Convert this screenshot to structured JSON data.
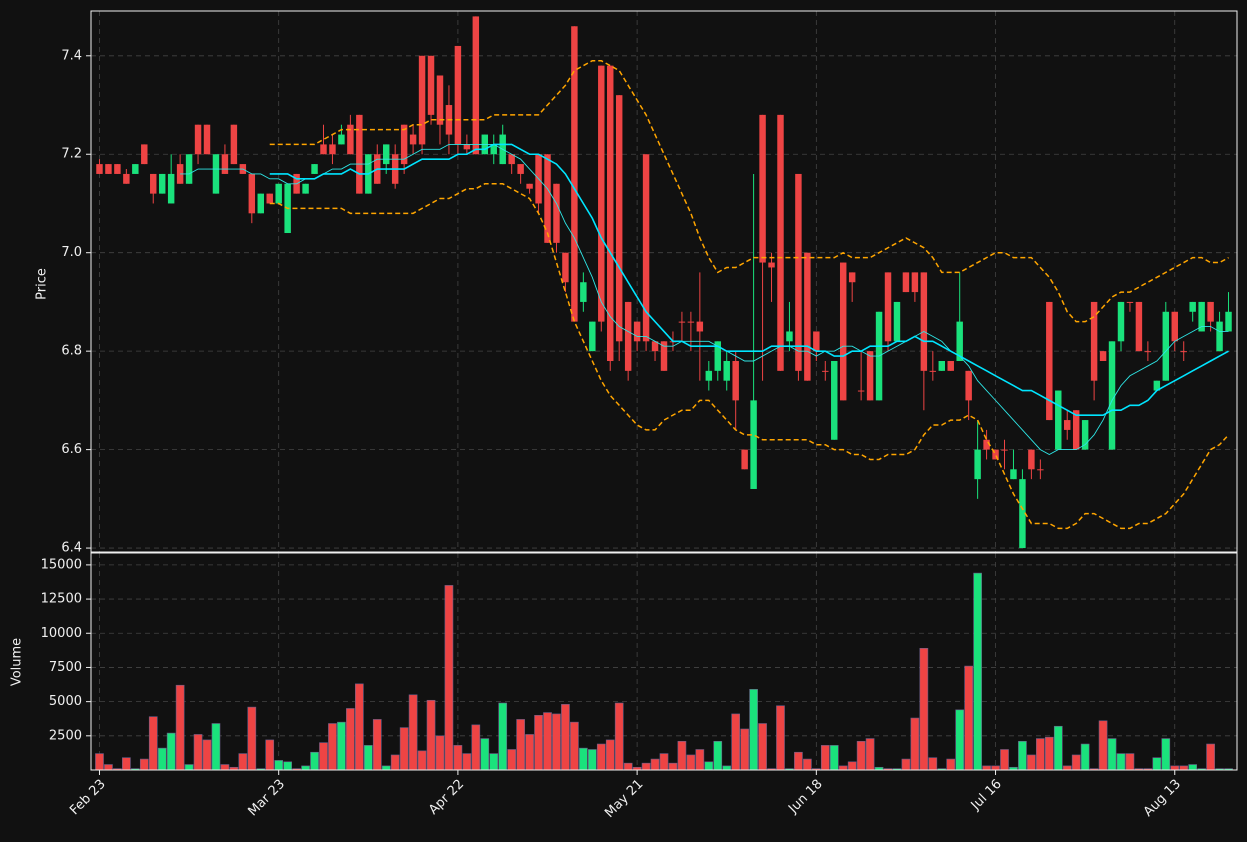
{
  "chart_data": {
    "type": "candlestick",
    "categories": [
      "Feb 23",
      null,
      null,
      null,
      null,
      null,
      null,
      null,
      null,
      null,
      null,
      null,
      null,
      null,
      null,
      null,
      null,
      null,
      null,
      null,
      "Mar 23",
      null,
      null,
      null,
      null,
      null,
      null,
      null,
      null,
      null,
      null,
      null,
      null,
      null,
      null,
      null,
      null,
      null,
      null,
      null,
      "Apr 22",
      null,
      null,
      null,
      null,
      null,
      null,
      null,
      null,
      null,
      null,
      null,
      null,
      null,
      null,
      null,
      null,
      null,
      null,
      null,
      "May 21",
      null,
      null,
      null,
      null,
      null,
      null,
      null,
      null,
      null,
      null,
      null,
      null,
      null,
      null,
      null,
      null,
      null,
      null,
      null,
      "Jun 18",
      null,
      null,
      null,
      null,
      null,
      null,
      null,
      null,
      null,
      null,
      null,
      null,
      null,
      null,
      null,
      null,
      null,
      null,
      null,
      "Jul 16",
      null,
      null,
      null,
      null,
      null,
      null,
      null,
      null,
      null,
      null,
      null,
      null,
      null,
      null,
      null,
      null,
      null,
      null,
      null,
      "Aug 13",
      null,
      null,
      null,
      null,
      null,
      null
    ],
    "open": [
      7.18,
      7.18,
      7.18,
      7.16,
      7.16,
      7.22,
      7.16,
      7.12,
      7.1,
      7.18,
      7.14,
      7.26,
      7.26,
      7.12,
      7.2,
      7.26,
      7.18,
      7.16,
      7.08,
      7.12,
      7.1,
      7.04,
      7.16,
      7.12,
      7.16,
      7.22,
      7.22,
      7.22,
      7.26,
      7.28,
      7.12,
      7.2,
      7.18,
      7.2,
      7.26,
      7.24,
      7.4,
      7.4,
      7.36,
      7.3,
      7.42,
      7.22,
      7.48,
      7.2,
      7.2,
      7.18,
      7.2,
      7.18,
      7.14,
      7.2,
      7.2,
      7.14,
      7.0,
      7.46,
      6.9,
      6.8,
      7.38,
      7.38,
      7.32,
      6.9,
      6.86,
      7.2,
      6.82,
      6.82,
      6.82,
      6.86,
      6.86,
      6.86,
      6.74,
      6.76,
      6.74,
      6.78,
      6.6,
      6.52,
      7.28,
      6.98,
      7.28,
      6.82,
      7.16,
      7.0,
      6.84,
      6.76,
      6.62,
      6.98,
      6.96,
      6.72,
      6.8,
      6.7,
      6.96,
      6.82,
      6.96,
      6.96,
      6.96,
      6.76,
      6.76,
      6.78,
      6.78,
      6.76,
      6.54,
      6.62,
      6.6,
      6.6,
      6.54,
      6.4,
      6.6,
      6.56,
      6.9,
      6.6,
      6.66,
      6.68,
      6.6,
      6.9,
      6.8,
      6.6,
      6.82,
      6.9,
      6.9,
      6.8,
      6.72,
      6.74,
      6.88,
      6.8,
      6.88,
      6.84,
      6.9,
      6.8,
      6.84
    ],
    "high": [
      7.19,
      7.18,
      7.18,
      7.17,
      7.18,
      7.22,
      7.16,
      7.16,
      7.2,
      7.2,
      7.2,
      7.26,
      7.26,
      7.2,
      7.22,
      7.26,
      7.18,
      7.16,
      7.12,
      7.12,
      7.14,
      7.14,
      7.16,
      7.14,
      7.18,
      7.26,
      7.24,
      7.26,
      7.28,
      7.28,
      7.2,
      7.22,
      7.22,
      7.22,
      7.26,
      7.26,
      7.4,
      7.4,
      7.36,
      7.34,
      7.42,
      7.24,
      7.48,
      7.24,
      7.24,
      7.26,
      7.2,
      7.18,
      7.14,
      7.2,
      7.2,
      7.14,
      7.0,
      7.46,
      6.96,
      6.86,
      7.38,
      7.38,
      7.32,
      6.9,
      6.86,
      7.2,
      6.82,
      6.82,
      6.84,
      6.88,
      6.88,
      6.96,
      6.78,
      6.82,
      6.8,
      6.8,
      6.6,
      7.16,
      7.28,
      7.0,
      7.28,
      6.9,
      7.16,
      7.0,
      6.84,
      6.78,
      6.78,
      6.98,
      6.96,
      6.8,
      6.8,
      6.88,
      6.96,
      6.9,
      6.96,
      6.96,
      6.96,
      6.8,
      6.78,
      6.78,
      6.96,
      6.76,
      6.66,
      6.64,
      6.6,
      6.62,
      6.6,
      6.56,
      6.6,
      6.58,
      6.9,
      6.72,
      6.68,
      6.68,
      6.66,
      6.9,
      6.8,
      6.82,
      6.9,
      6.9,
      6.9,
      6.82,
      6.74,
      6.9,
      6.88,
      6.82,
      6.9,
      6.9,
      6.9,
      6.88,
      6.92
    ],
    "low": [
      7.16,
      7.16,
      7.16,
      7.14,
      7.16,
      7.18,
      7.1,
      7.12,
      7.1,
      7.14,
      7.14,
      7.18,
      7.2,
      7.12,
      7.16,
      7.18,
      7.16,
      7.06,
      7.08,
      7.1,
      7.1,
      7.04,
      7.12,
      7.12,
      7.16,
      7.2,
      7.18,
      7.22,
      7.2,
      7.12,
      7.12,
      7.14,
      7.16,
      7.13,
      7.16,
      7.2,
      7.2,
      7.26,
      7.22,
      7.2,
      7.2,
      7.2,
      7.2,
      7.2,
      7.18,
      7.18,
      7.16,
      7.14,
      7.12,
      7.08,
      7.02,
      7.0,
      6.92,
      6.86,
      6.88,
      6.8,
      6.84,
      6.76,
      6.78,
      6.74,
      6.8,
      6.8,
      6.78,
      6.76,
      6.8,
      6.82,
      6.8,
      6.74,
      6.72,
      6.74,
      6.72,
      6.64,
      6.56,
      6.52,
      6.74,
      6.9,
      6.76,
      6.8,
      6.74,
      6.74,
      6.78,
      6.74,
      6.62,
      6.7,
      6.9,
      6.7,
      6.7,
      6.7,
      6.8,
      6.82,
      6.92,
      6.9,
      6.68,
      6.74,
      6.76,
      6.76,
      6.78,
      6.66,
      6.5,
      6.58,
      6.58,
      6.56,
      6.54,
      6.4,
      6.54,
      6.54,
      6.66,
      6.6,
      6.62,
      6.6,
      6.6,
      6.7,
      6.78,
      6.6,
      6.8,
      6.88,
      6.8,
      6.78,
      6.72,
      6.74,
      6.8,
      6.78,
      6.86,
      6.84,
      6.84,
      6.8,
      6.84
    ],
    "close": [
      7.16,
      7.16,
      7.16,
      7.14,
      7.18,
      7.18,
      7.12,
      7.16,
      7.16,
      7.14,
      7.2,
      7.2,
      7.2,
      7.2,
      7.16,
      7.18,
      7.16,
      7.08,
      7.12,
      7.1,
      7.14,
      7.14,
      7.12,
      7.14,
      7.18,
      7.2,
      7.2,
      7.24,
      7.2,
      7.12,
      7.2,
      7.14,
      7.22,
      7.14,
      7.18,
      7.22,
      7.22,
      7.28,
      7.26,
      7.24,
      7.22,
      7.21,
      7.2,
      7.24,
      7.22,
      7.24,
      7.18,
      7.16,
      7.13,
      7.1,
      7.02,
      7.02,
      6.94,
      6.86,
      6.94,
      6.86,
      6.86,
      6.78,
      6.82,
      6.76,
      6.82,
      6.82,
      6.8,
      6.76,
      6.82,
      6.86,
      6.86,
      6.84,
      6.76,
      6.82,
      6.78,
      6.7,
      6.56,
      6.7,
      6.98,
      6.97,
      6.76,
      6.84,
      6.76,
      6.74,
      6.8,
      6.76,
      6.78,
      6.7,
      6.94,
      6.72,
      6.7,
      6.88,
      6.82,
      6.9,
      6.92,
      6.92,
      6.76,
      6.76,
      6.78,
      6.76,
      6.86,
      6.7,
      6.6,
      6.6,
      6.58,
      6.6,
      6.56,
      6.54,
      6.56,
      6.56,
      6.66,
      6.72,
      6.64,
      6.6,
      6.66,
      6.74,
      6.78,
      6.82,
      6.9,
      6.9,
      6.8,
      6.8,
      6.74,
      6.88,
      6.82,
      6.8,
      6.9,
      6.9,
      6.86,
      6.86,
      6.88
    ],
    "up_color": "#1ae27c",
    "down_color": "#ee4444",
    "ylabel": "Price",
    "ylim": [
      6.392,
      7.491
    ],
    "yticks": [
      6.4,
      6.6,
      6.8,
      {
        "value": 7.0,
        "label": "7.0"
      },
      7.2,
      7.4
    ],
    "grid": true,
    "lines": [
      {
        "color": "#2ee6e6",
        "width": 0.9,
        "dashed": false,
        "values": [
          null,
          null,
          null,
          null,
          null,
          null,
          null,
          null,
          null,
          7.16,
          7.16,
          7.17,
          7.17,
          7.17,
          7.17,
          7.17,
          7.17,
          7.16,
          7.16,
          7.15,
          7.15,
          7.14,
          7.14,
          7.15,
          7.15,
          7.16,
          7.17,
          7.17,
          7.18,
          7.18,
          7.18,
          7.19,
          7.19,
          7.19,
          7.19,
          7.2,
          7.21,
          7.21,
          7.21,
          7.22,
          7.22,
          7.22,
          7.22,
          7.22,
          7.22,
          7.21,
          7.2,
          7.19,
          7.17,
          7.15,
          7.13,
          7.1,
          7.06,
          7.03,
          6.99,
          6.95,
          6.9,
          6.87,
          6.85,
          6.84,
          6.83,
          6.83,
          6.82,
          6.81,
          6.81,
          6.82,
          6.82,
          6.82,
          6.82,
          6.81,
          6.8,
          6.79,
          6.78,
          6.78,
          6.79,
          6.8,
          6.81,
          6.81,
          6.8,
          6.8,
          6.79,
          6.8,
          6.8,
          6.81,
          6.81,
          6.8,
          6.79,
          6.79,
          6.8,
          6.81,
          6.82,
          6.83,
          6.84,
          6.83,
          6.82,
          6.8,
          6.79,
          6.77,
          6.74,
          6.72,
          6.7,
          6.68,
          6.66,
          6.64,
          6.62,
          6.6,
          6.59,
          6.6,
          6.6,
          6.6,
          6.61,
          6.63,
          6.66,
          6.7,
          6.73,
          6.75,
          6.76,
          6.77,
          6.78,
          6.8,
          6.82,
          6.83,
          6.84,
          6.85,
          6.85,
          6.84,
          6.84
        ]
      },
      {
        "color": "#00e5ff",
        "width": 1.6,
        "dashed": false,
        "values": [
          null,
          null,
          null,
          null,
          null,
          null,
          null,
          null,
          null,
          null,
          null,
          null,
          null,
          null,
          null,
          null,
          null,
          null,
          null,
          7.16,
          7.16,
          7.16,
          7.15,
          7.15,
          7.15,
          7.16,
          7.16,
          7.16,
          7.17,
          7.16,
          7.16,
          7.17,
          7.17,
          7.17,
          7.17,
          7.18,
          7.19,
          7.19,
          7.19,
          7.19,
          7.2,
          7.2,
          7.21,
          7.21,
          7.22,
          7.22,
          7.22,
          7.21,
          7.2,
          7.2,
          7.19,
          7.18,
          7.16,
          7.13,
          7.1,
          7.07,
          7.03,
          7.0,
          6.97,
          6.94,
          6.91,
          6.88,
          6.86,
          6.84,
          6.82,
          6.82,
          6.81,
          6.81,
          6.81,
          6.81,
          6.8,
          6.8,
          6.8,
          6.8,
          6.8,
          6.81,
          6.81,
          6.81,
          6.81,
          6.81,
          6.8,
          6.8,
          6.79,
          6.79,
          6.8,
          6.8,
          6.81,
          6.81,
          6.81,
          6.82,
          6.82,
          6.83,
          6.82,
          6.82,
          6.81,
          6.8,
          6.79,
          6.78,
          6.77,
          6.76,
          6.75,
          6.74,
          6.73,
          6.72,
          6.72,
          6.71,
          6.7,
          6.69,
          6.68,
          6.67,
          6.67,
          6.67,
          6.67,
          6.68,
          6.68,
          6.69,
          6.69,
          6.7,
          6.72,
          6.73,
          6.74,
          6.75,
          6.76,
          6.77,
          6.78,
          6.79,
          6.8
        ]
      },
      {
        "color": "#ffa500",
        "width": 1.5,
        "dashed": true,
        "values": [
          null,
          null,
          null,
          null,
          null,
          null,
          null,
          null,
          null,
          null,
          null,
          null,
          null,
          null,
          null,
          null,
          null,
          null,
          null,
          7.22,
          7.22,
          7.22,
          7.22,
          7.22,
          7.22,
          7.23,
          7.24,
          7.25,
          7.25,
          7.25,
          7.25,
          7.25,
          7.25,
          7.25,
          7.25,
          7.26,
          7.26,
          7.27,
          7.27,
          7.27,
          7.27,
          7.27,
          7.27,
          7.27,
          7.28,
          7.28,
          7.28,
          7.28,
          7.28,
          7.28,
          7.3,
          7.32,
          7.34,
          7.37,
          7.38,
          7.39,
          7.39,
          7.38,
          7.37,
          7.34,
          7.31,
          7.28,
          7.24,
          7.2,
          7.16,
          7.12,
          7.08,
          7.03,
          6.99,
          6.96,
          6.97,
          6.97,
          6.98,
          6.99,
          6.99,
          6.99,
          6.99,
          6.99,
          6.99,
          6.99,
          6.99,
          6.99,
          6.99,
          7.0,
          6.99,
          6.99,
          6.99,
          7.0,
          7.01,
          7.02,
          7.03,
          7.02,
          7.01,
          6.99,
          6.96,
          6.96,
          6.96,
          6.97,
          6.98,
          6.99,
          7.0,
          7.0,
          6.99,
          6.99,
          6.99,
          6.97,
          6.95,
          6.92,
          6.88,
          6.86,
          6.86,
          6.87,
          6.89,
          6.91,
          6.92,
          6.92,
          6.93,
          6.94,
          6.95,
          6.96,
          6.97,
          6.98,
          6.99,
          6.99,
          6.98,
          6.98,
          6.99
        ]
      },
      {
        "color": "#ffa500",
        "width": 1.5,
        "dashed": true,
        "values": [
          null,
          null,
          null,
          null,
          null,
          null,
          null,
          null,
          null,
          null,
          null,
          null,
          null,
          null,
          null,
          null,
          null,
          null,
          null,
          7.1,
          7.1,
          7.09,
          7.09,
          7.09,
          7.09,
          7.09,
          7.09,
          7.09,
          7.08,
          7.08,
          7.08,
          7.08,
          7.08,
          7.08,
          7.08,
          7.08,
          7.09,
          7.1,
          7.11,
          7.11,
          7.12,
          7.13,
          7.13,
          7.14,
          7.14,
          7.14,
          7.13,
          7.12,
          7.11,
          7.08,
          7.04,
          6.98,
          6.92,
          6.86,
          6.82,
          6.78,
          6.74,
          6.71,
          6.69,
          6.67,
          6.65,
          6.64,
          6.64,
          6.66,
          6.67,
          6.68,
          6.68,
          6.7,
          6.7,
          6.68,
          6.66,
          6.64,
          6.63,
          6.63,
          6.62,
          6.62,
          6.62,
          6.62,
          6.62,
          6.62,
          6.61,
          6.61,
          6.6,
          6.6,
          6.59,
          6.59,
          6.58,
          6.58,
          6.59,
          6.59,
          6.59,
          6.6,
          6.63,
          6.65,
          6.65,
          6.66,
          6.66,
          6.67,
          6.66,
          6.62,
          6.59,
          6.55,
          6.51,
          6.48,
          6.45,
          6.45,
          6.45,
          6.44,
          6.44,
          6.45,
          6.47,
          6.47,
          6.46,
          6.45,
          6.44,
          6.44,
          6.45,
          6.45,
          6.46,
          6.47,
          6.49,
          6.51,
          6.54,
          6.57,
          6.6,
          6.61,
          6.63
        ]
      }
    ],
    "volume": {
      "ylabel": "Volume",
      "ylim": [
        0,
        15870
      ],
      "yticks": [
        2500,
        5000,
        7500,
        10000,
        12500,
        15000
      ],
      "values": [
        1200,
        400,
        100,
        900,
        100,
        800,
        3900,
        1600,
        2700,
        6200,
        400,
        2600,
        2200,
        3400,
        400,
        200,
        1200,
        4600,
        100,
        2200,
        700,
        600,
        100,
        300,
        1300,
        2000,
        3400,
        3500,
        4500,
        6300,
        1800,
        3700,
        300,
        1100,
        3100,
        5500,
        1400,
        5100,
        2500,
        13500,
        1800,
        1200,
        3300,
        2300,
        1200,
        4900,
        1500,
        3700,
        2600,
        4000,
        4200,
        4100,
        4800,
        3500,
        1600,
        1500,
        1900,
        2200,
        4900,
        500,
        200,
        500,
        800,
        1200,
        500,
        2100,
        1100,
        1500,
        600,
        2100,
        300,
        4100,
        3000,
        5900,
        3400,
        100,
        4700,
        100,
        1300,
        800,
        100,
        1800,
        1800,
        300,
        600,
        2100,
        2300,
        200,
        100,
        100,
        800,
        3800,
        8900,
        900,
        100,
        800,
        4400,
        7600,
        14400,
        300,
        300,
        1500,
        200,
        2100,
        1100,
        2300,
        2400,
        3200,
        300,
        1100,
        1900,
        100,
        3600,
        2300,
        1200,
        1200,
        100,
        100,
        900,
        2300,
        300,
        300,
        400,
        100,
        1900,
        100,
        100
      ]
    }
  }
}
